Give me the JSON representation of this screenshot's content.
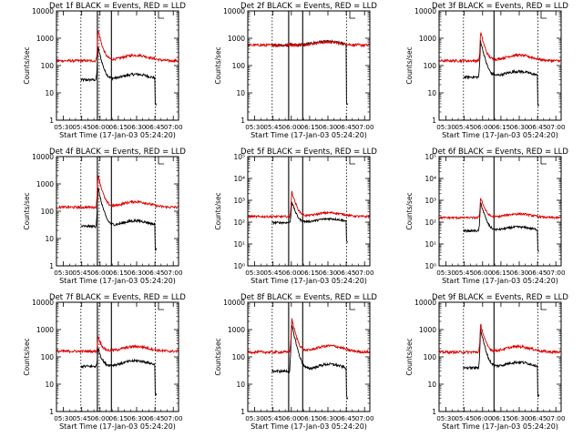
{
  "figure": {
    "xlabel": "Start Time (17-Jan-03 05:24:20)",
    "ylabel": "Counts/sec",
    "xticks": [
      "05:30",
      "05:45",
      "06:00",
      "06:15",
      "06:30",
      "06:45",
      "07:00"
    ],
    "colors": {
      "events": "#000000",
      "lld": "#dd0000"
    }
  },
  "chart_data": [
    {
      "type": "line",
      "title": "Det 1f BLACK = Events, RED = LLD",
      "ylabel": "Counts/sec",
      "xlabel": "Start Time (17-Jan-03 05:24:20)",
      "xlim_minutes": [
        0,
        100
      ],
      "ylim": [
        1,
        10000
      ],
      "yscale": "log",
      "ytick_style": "plain",
      "ytick_labels": [
        "1",
        "10",
        "100",
        "1000",
        "10000"
      ],
      "vlines_dashed_minutes": [
        20,
        35,
        81
      ],
      "vlines_solid_minutes": [
        33.5,
        45
      ],
      "series": [
        {
          "name": "Events",
          "color": "#000000",
          "start": 20,
          "end": 82,
          "base": 30,
          "peak": 480,
          "peak_time": 34,
          "hump": 1.6,
          "drop": 1.5
        },
        {
          "name": "LLD",
          "color": "#dd0000",
          "start": 0,
          "end": 100,
          "base": 150,
          "peak": 2000,
          "peak_time": 34,
          "hump": 1.6
        }
      ]
    },
    {
      "type": "line",
      "title": "Det 2f BLACK = Events, RED = LLD",
      "ylabel": "Counts/sec",
      "xlabel": "Start Time (17-Jan-03 05:24:20)",
      "xlim_minutes": [
        0,
        100
      ],
      "ylim": [
        1,
        10000
      ],
      "yscale": "log",
      "ytick_style": "plain",
      "ytick_labels": [
        "1",
        "10",
        "100",
        "1000",
        "10000"
      ],
      "vlines_dashed_minutes": [
        20,
        81
      ],
      "vlines_solid_minutes": [
        33.5,
        45
      ],
      "series": [
        {
          "name": "Events",
          "color": "#000000",
          "start": 20,
          "end": 82,
          "base": 560,
          "peak": 600,
          "peak_time": 34,
          "hump": 1.35,
          "drop": 25
        },
        {
          "name": "LLD",
          "color": "#dd0000",
          "start": 0,
          "end": 100,
          "base": 560,
          "peak": 610,
          "peak_time": 34,
          "hump": 1.3
        }
      ]
    },
    {
      "type": "line",
      "title": "Det 3f BLACK = Events, RED = LLD",
      "ylabel": "Counts/sec",
      "xlabel": "Start Time (17-Jan-03 05:24:20)",
      "xlim_minutes": [
        0,
        100
      ],
      "ylim": [
        1,
        10000
      ],
      "yscale": "log",
      "ytick_style": "plain",
      "ytick_labels": [
        "1",
        "10",
        "100",
        "1000",
        "10000"
      ],
      "vlines_dashed_minutes": [
        20,
        81
      ],
      "vlines_solid_minutes": [
        45
      ],
      "series": [
        {
          "name": "Events",
          "color": "#000000",
          "start": 20,
          "end": 82,
          "base": 38,
          "peak": 800,
          "peak_time": 34,
          "hump": 1.6,
          "drop": 2
        },
        {
          "name": "LLD",
          "color": "#dd0000",
          "start": 0,
          "end": 100,
          "base": 150,
          "peak": 1700,
          "peak_time": 34,
          "hump": 1.6
        }
      ]
    },
    {
      "type": "line",
      "title": "Det 4f BLACK = Events, RED = LLD",
      "ylabel": "Counts/sec",
      "xlabel": "Start Time (17-Jan-03 05:24:20)",
      "xlim_minutes": [
        0,
        100
      ],
      "ylim": [
        1,
        10000
      ],
      "yscale": "log",
      "ytick_style": "plain",
      "ytick_labels": [
        "1",
        "10",
        "100",
        "1000",
        "10000"
      ],
      "vlines_dashed_minutes": [
        20,
        35,
        81
      ],
      "vlines_solid_minutes": [
        33.5,
        45
      ],
      "series": [
        {
          "name": "Events",
          "color": "#000000",
          "start": 20,
          "end": 82,
          "base": 28,
          "peak": 700,
          "peak_time": 34,
          "hump": 1.6,
          "drop": 1.3
        },
        {
          "name": "LLD",
          "color": "#dd0000",
          "start": 0,
          "end": 100,
          "base": 140,
          "peak": 2200,
          "peak_time": 34,
          "hump": 1.6
        }
      ]
    },
    {
      "type": "line",
      "title": "Det 5f BLACK = Events, RED = LLD",
      "ylabel": "Counts/sec",
      "xlabel": "Start Time (17-Jan-03 05:24:20)",
      "xlim_minutes": [
        0,
        100
      ],
      "ylim": [
        1,
        100000
      ],
      "yscale": "log",
      "ytick_style": "exponent",
      "ytick_labels": [
        "10⁰",
        "10¹",
        "10²",
        "10³",
        "10⁴",
        "10⁵"
      ],
      "vlines_dashed_minutes": [
        20,
        81
      ],
      "vlines_solid_minutes": [
        33.5,
        45
      ],
      "series": [
        {
          "name": "Events",
          "color": "#000000",
          "start": 20,
          "end": 82,
          "base": 95,
          "peak": 900,
          "peak_time": 36,
          "hump": 1.5,
          "drop": 1.5
        },
        {
          "name": "LLD",
          "color": "#dd0000",
          "start": 0,
          "end": 100,
          "base": 180,
          "peak": 2500,
          "peak_time": 36,
          "hump": 1.5
        }
      ]
    },
    {
      "type": "line",
      "title": "Det 6f BLACK = Events, RED = LLD",
      "ylabel": "Counts/sec",
      "xlabel": "Start Time (17-Jan-03 05:24:20)",
      "xlim_minutes": [
        0,
        100
      ],
      "ylim": [
        1,
        100000
      ],
      "yscale": "log",
      "ytick_style": "exponent",
      "ytick_labels": [
        "10⁰",
        "10¹",
        "10²",
        "10³",
        "10⁴",
        "10⁵"
      ],
      "vlines_dashed_minutes": [
        20,
        81
      ],
      "vlines_solid_minutes": [
        45
      ],
      "series": [
        {
          "name": "Events",
          "color": "#000000",
          "start": 20,
          "end": 82,
          "base": 40,
          "peak": 800,
          "peak_time": 34,
          "hump": 1.5,
          "drop": 1.5
        },
        {
          "name": "LLD",
          "color": "#dd0000",
          "start": 0,
          "end": 100,
          "base": 160,
          "peak": 1400,
          "peak_time": 34,
          "hump": 1.5
        }
      ]
    },
    {
      "type": "line",
      "title": "Det 7f BLACK = Events, RED = LLD",
      "ylabel": "Counts/sec",
      "xlabel": "Start Time (17-Jan-03 05:24:20)",
      "xlim_minutes": [
        0,
        100
      ],
      "ylim": [
        1,
        10000
      ],
      "yscale": "log",
      "ytick_style": "plain",
      "ytick_labels": [
        "1",
        "10",
        "100",
        "1000",
        "10000"
      ],
      "vlines_dashed_minutes": [
        20,
        35,
        81
      ],
      "vlines_solid_minutes": [
        33.5,
        45
      ],
      "series": [
        {
          "name": "Events",
          "color": "#000000",
          "start": 20,
          "end": 82,
          "base": 45,
          "peak": 220,
          "peak_time": 34,
          "hump": 1.6,
          "drop": 2
        },
        {
          "name": "LLD",
          "color": "#dd0000",
          "start": 0,
          "end": 100,
          "base": 160,
          "peak": 600,
          "peak_time": 34,
          "hump": 1.5
        }
      ]
    },
    {
      "type": "line",
      "title": "Det 8f BLACK = Events, RED = LLD",
      "ylabel": "Counts/sec",
      "xlabel": "Start Time (17-Jan-03 05:24:20)",
      "xlim_minutes": [
        0,
        100
      ],
      "ylim": [
        1,
        10000
      ],
      "yscale": "log",
      "ytick_style": "plain",
      "ytick_labels": [
        "1",
        "10",
        "100",
        "1000",
        "10000"
      ],
      "vlines_dashed_minutes": [
        20,
        81
      ],
      "vlines_solid_minutes": [
        33.5,
        45
      ],
      "series": [
        {
          "name": "Events",
          "color": "#000000",
          "start": 20,
          "end": 82,
          "base": 30,
          "peak": 1500,
          "peak_time": 36,
          "hump": 1.8,
          "drop": 2
        },
        {
          "name": "LLD",
          "color": "#dd0000",
          "start": 0,
          "end": 100,
          "base": 150,
          "peak": 2500,
          "peak_time": 36,
          "hump": 1.7
        }
      ]
    },
    {
      "type": "line",
      "title": "Det 9f BLACK = Events, RED = LLD",
      "ylabel": "Counts/sec",
      "xlabel": "Start Time (17-Jan-03 05:24:20)",
      "xlim_minutes": [
        0,
        100
      ],
      "ylim": [
        1,
        10000
      ],
      "yscale": "log",
      "ytick_style": "plain",
      "ytick_labels": [
        "1",
        "10",
        "100",
        "1000",
        "10000"
      ],
      "vlines_dashed_minutes": [
        20,
        81
      ],
      "vlines_solid_minutes": [
        45
      ],
      "series": [
        {
          "name": "Events",
          "color": "#000000",
          "start": 20,
          "end": 82,
          "base": 40,
          "peak": 1000,
          "peak_time": 34,
          "hump": 1.6,
          "drop": 2
        },
        {
          "name": "LLD",
          "color": "#dd0000",
          "start": 0,
          "end": 100,
          "base": 150,
          "peak": 1600,
          "peak_time": 34,
          "hump": 1.6
        }
      ]
    }
  ]
}
